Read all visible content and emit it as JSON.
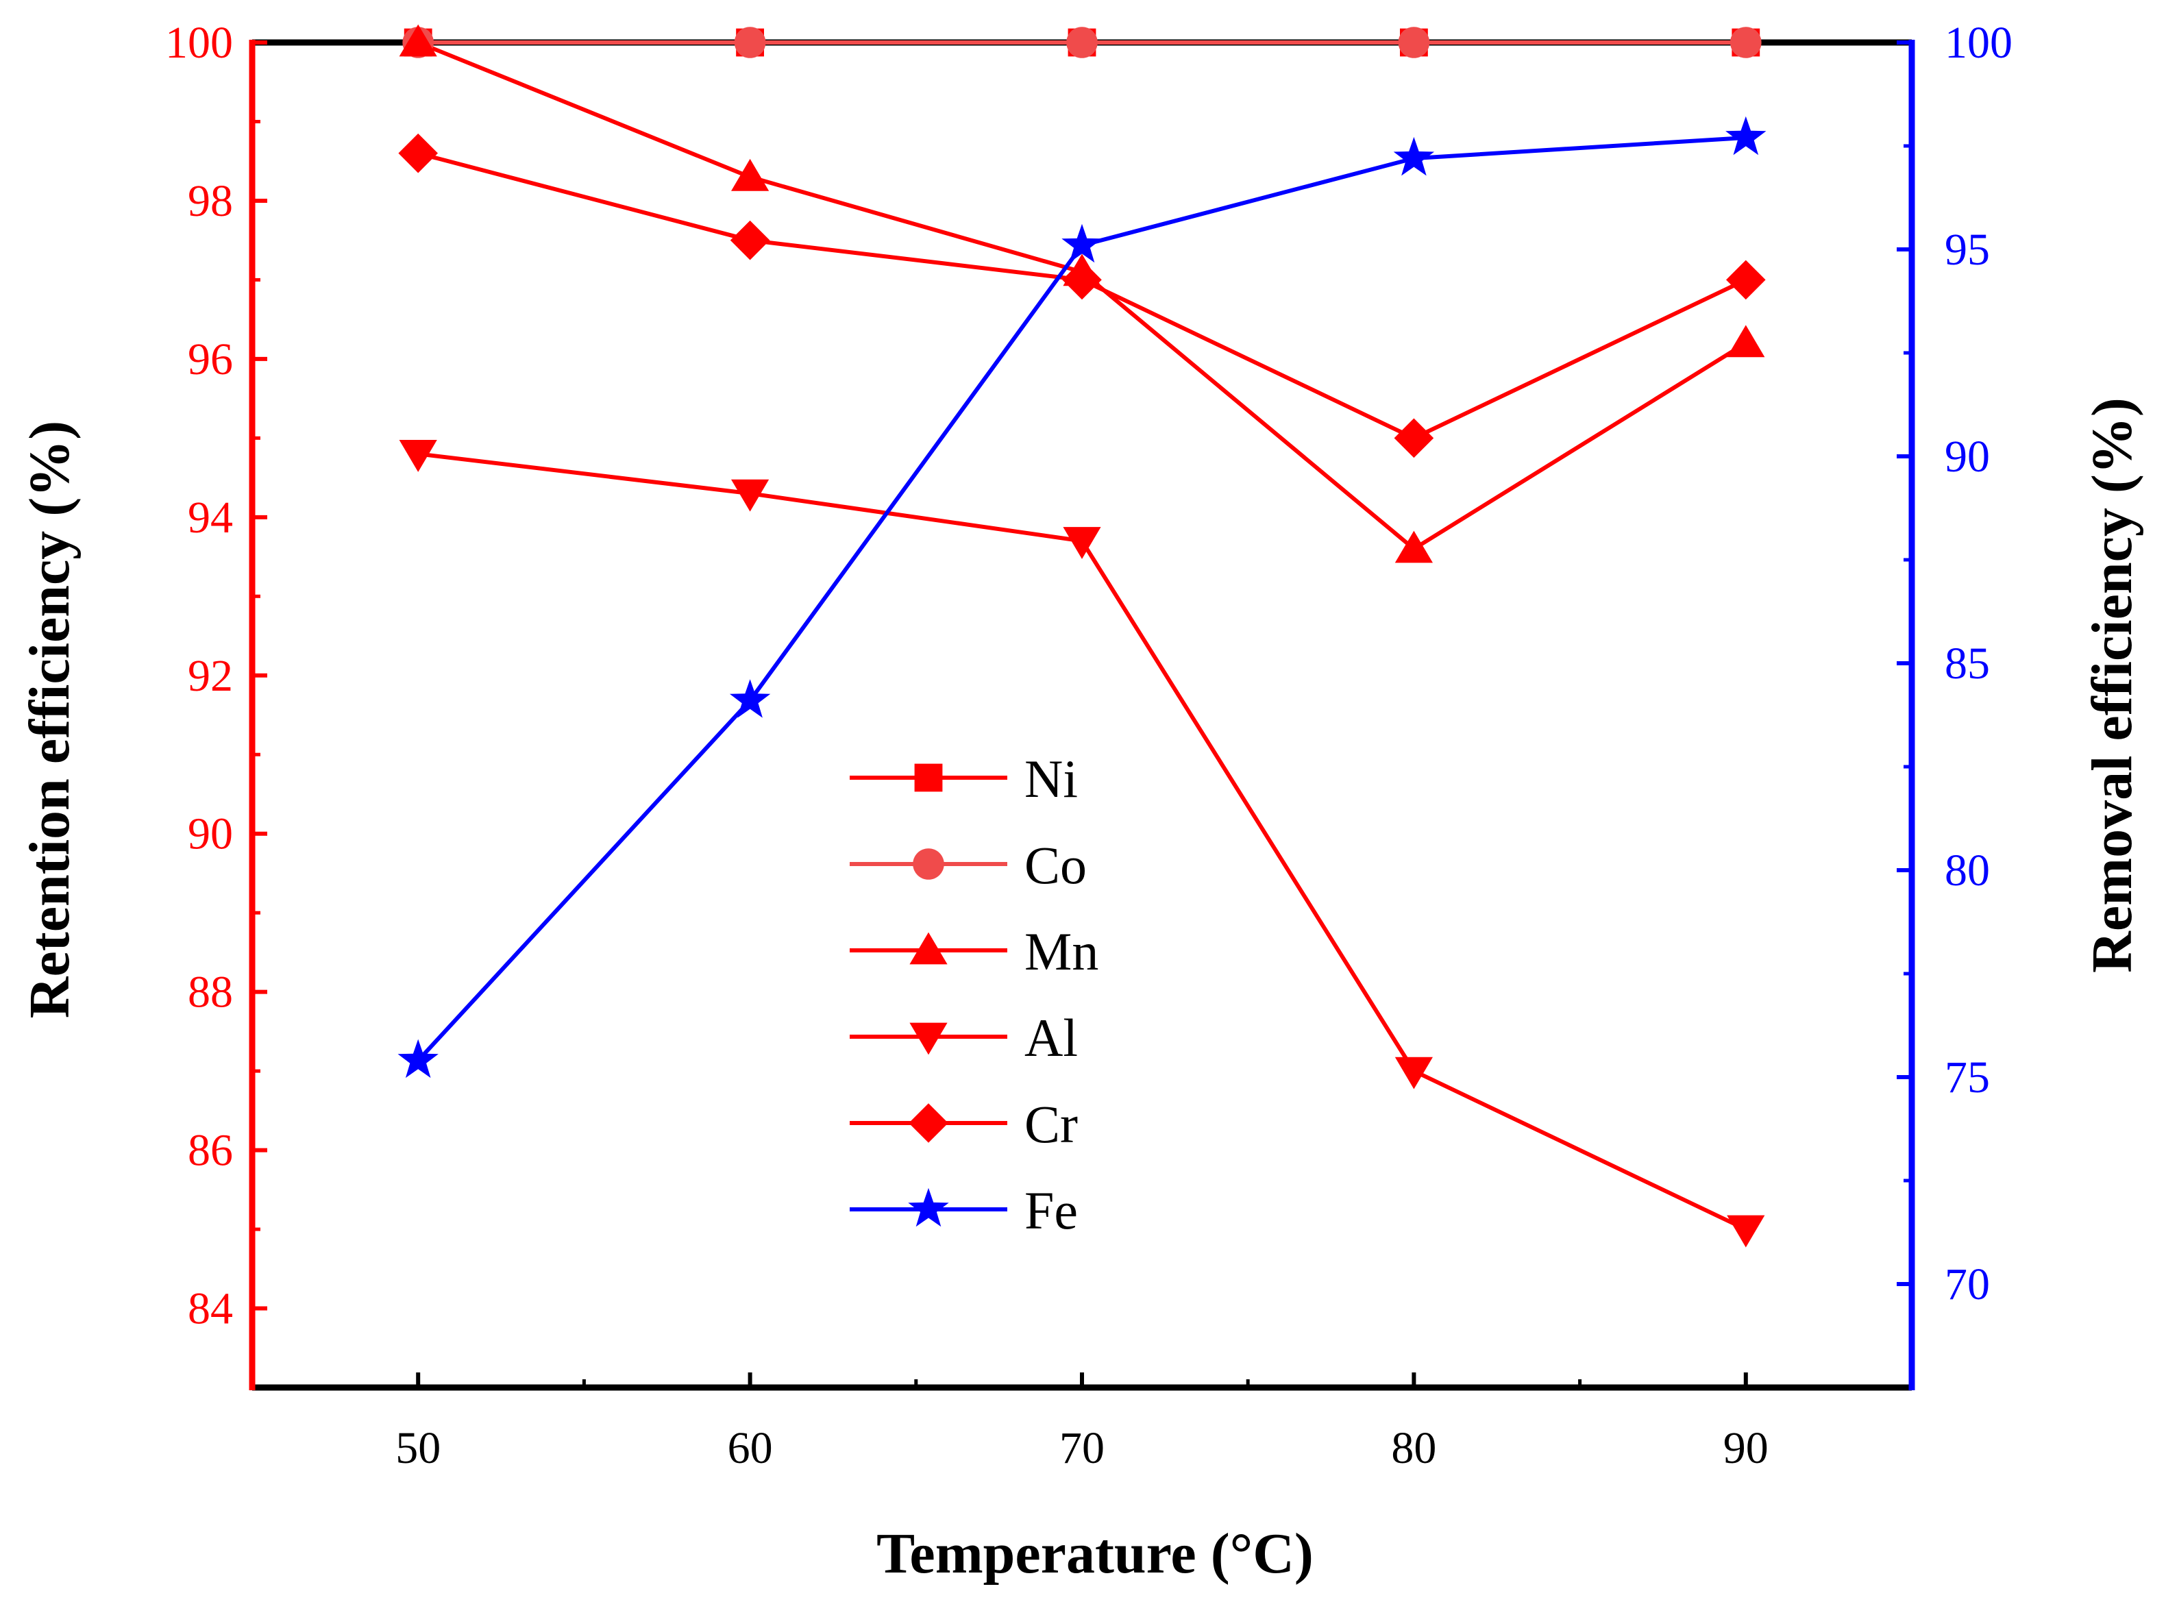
{
  "chart_data": {
    "type": "line",
    "title": "",
    "xlabel": "Temperature (°C)",
    "ylabel_left": "Retention efficiency (%)",
    "ylabel_right": "Removal efficiency (%)",
    "x": [
      50,
      60,
      70,
      80,
      90
    ],
    "xlim": [
      45,
      95
    ],
    "xticks": [
      "50",
      "60",
      "70",
      "80",
      "90"
    ],
    "ylim_left": [
      83,
      100
    ],
    "yticks_left": [
      "84",
      "86",
      "88",
      "90",
      "92",
      "94",
      "96",
      "98",
      "100"
    ],
    "ylim_right": [
      67.5,
      100
    ],
    "yticks_right": [
      "70",
      "75",
      "80",
      "85",
      "90",
      "95",
      "100"
    ],
    "legend_position": "center",
    "series": [
      {
        "name": "Ni",
        "axis": "left",
        "marker": "square",
        "color": "#ff0000",
        "values": [
          100,
          100,
          100,
          100,
          100
        ]
      },
      {
        "name": "Co",
        "axis": "left",
        "marker": "circle",
        "color": "#f04b4b",
        "values": [
          100,
          100,
          100,
          100,
          100
        ]
      },
      {
        "name": "Mn",
        "axis": "left",
        "marker": "triangle-up",
        "color": "#ff0000",
        "values": [
          100,
          98.3,
          97.1,
          93.6,
          96.2
        ]
      },
      {
        "name": "Al",
        "axis": "left",
        "marker": "triangle-down",
        "color": "#ff0000",
        "values": [
          94.8,
          94.3,
          93.7,
          87.0,
          85.0
        ]
      },
      {
        "name": "Cr",
        "axis": "left",
        "marker": "diamond",
        "color": "#ff0000",
        "values": [
          98.6,
          97.5,
          97.0,
          95.0,
          97.0
        ]
      },
      {
        "name": "Fe",
        "axis": "right",
        "marker": "star",
        "color": "#0000ff",
        "values": [
          75.4,
          84.1,
          95.1,
          97.2,
          97.7
        ]
      }
    ],
    "colors": {
      "left_axis": "#ff0000",
      "right_axis": "#0000ff",
      "frame": "#000000"
    }
  }
}
